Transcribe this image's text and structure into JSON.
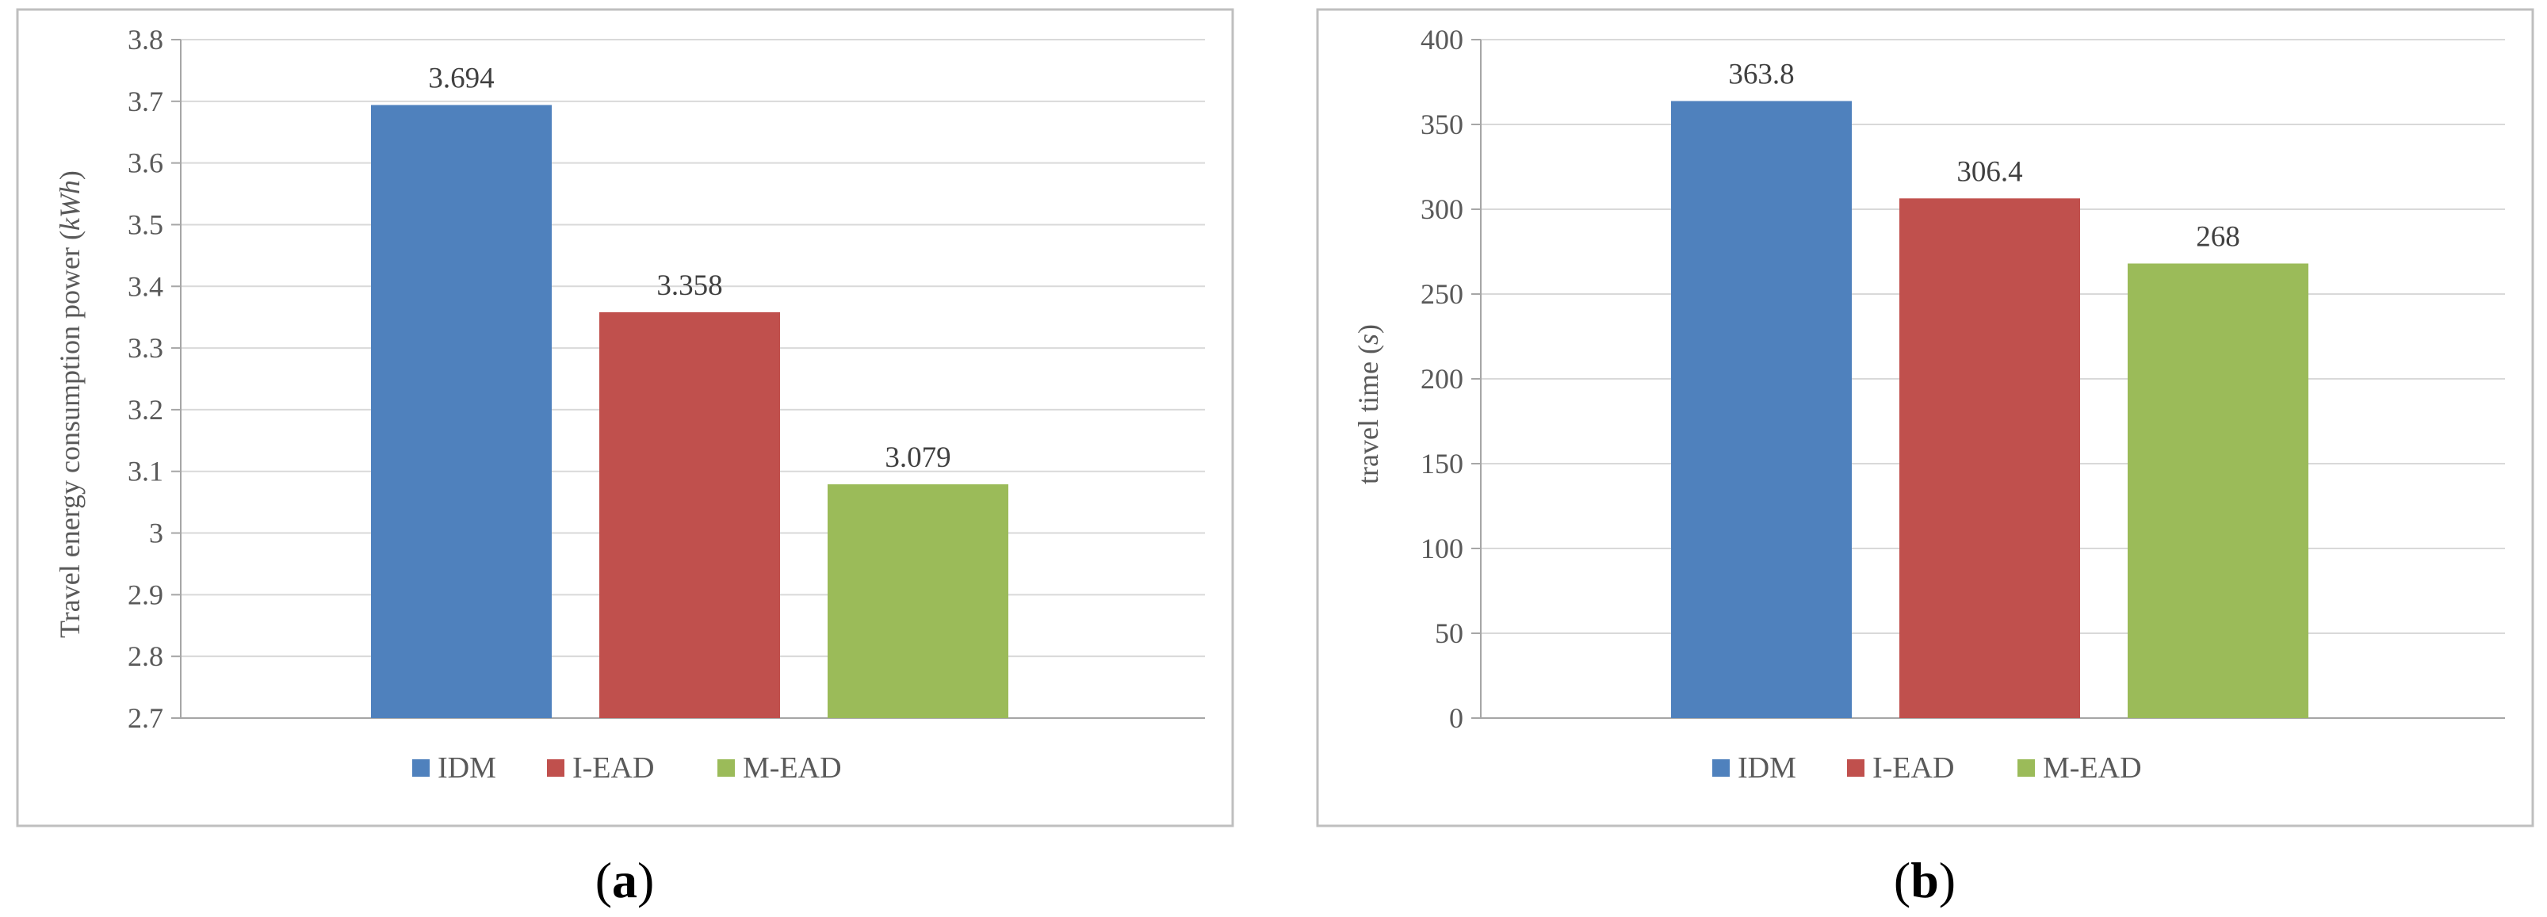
{
  "colors": {
    "IDM": "#4F81BD",
    "I-EAD": "#C0504D",
    "M-EAD": "#9BBB59",
    "grid": "#d9d9d9",
    "frame": "#bfbfbf"
  },
  "panel_labels": {
    "a_open": "(",
    "a_letter": "a",
    "a_close": ")",
    "b_open": "(",
    "b_letter": "b",
    "b_close": ")"
  },
  "chart_data": [
    {
      "type": "bar",
      "categories": [
        "IDM",
        "I-EAD",
        "M-EAD"
      ],
      "values": [
        3.694,
        3.358,
        3.079
      ],
      "value_labels": [
        "3.694",
        "3.358",
        "3.079"
      ],
      "ylabel_main": "Travel energy consumption power (",
      "ylabel_unit": "kWh",
      "ylabel_close": ")",
      "ylim": [
        2.7,
        3.8
      ],
      "yticks": [
        "2.7",
        "2.8",
        "2.9",
        "3",
        "3.1",
        "3.2",
        "3.3",
        "3.4",
        "3.5",
        "3.6",
        "3.7",
        "3.8"
      ],
      "grid": true,
      "legend": "bottom",
      "legend_labels": [
        "IDM",
        "I-EAD",
        "M-EAD"
      ]
    },
    {
      "type": "bar",
      "categories": [
        "IDM",
        "I-EAD",
        "M-EAD"
      ],
      "values": [
        363.8,
        306.4,
        268
      ],
      "value_labels": [
        "363.8",
        "306.4",
        "268"
      ],
      "ylabel_main": "travel time (",
      "ylabel_unit": "s",
      "ylabel_close": ")",
      "ylim": [
        0,
        400
      ],
      "yticks": [
        "0",
        "50",
        "100",
        "150",
        "200",
        "250",
        "300",
        "350",
        "400"
      ],
      "grid": true,
      "legend": "bottom",
      "legend_labels": [
        "IDM",
        "I-EAD",
        "M-EAD"
      ]
    }
  ]
}
